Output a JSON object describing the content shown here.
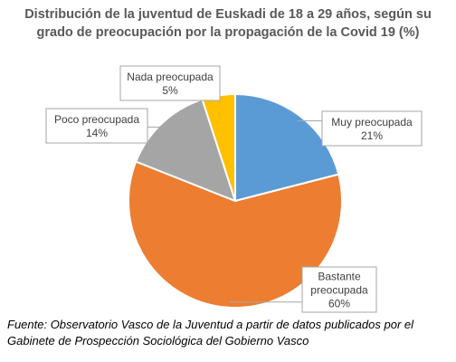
{
  "title_lines": [
    "Distribución de la juventud de Euskadi de 18 a 29 años, según su",
    "grado de preocupación por la propagación de la Covid 19 (%)"
  ],
  "source_lines": [
    "Fuente: Observatorio Vasco de la Juventud a partir de datos publicados por el",
    "Gabinete de Prospección Sociológica del Gobierno Vasco"
  ],
  "chart_data": {
    "type": "pie",
    "title": "Distribución de la juventud de Euskadi de 18 a 29 años, según su grado de preocupación por la propagación de la Covid 19 (%)",
    "unit": "%",
    "slices": [
      {
        "label_lines": [
          "Muy preocupada"
        ],
        "value": 21,
        "value_label": "21%",
        "color": "#5b9bd5"
      },
      {
        "label_lines": [
          "Bastante",
          "preocupada"
        ],
        "value": 60,
        "value_label": "60%",
        "color": "#ed7d31"
      },
      {
        "label_lines": [
          "Poco preocupada"
        ],
        "value": 14,
        "value_label": "14%",
        "color": "#a5a5a5"
      },
      {
        "label_lines": [
          "Nada preocupada"
        ],
        "value": 5,
        "value_label": "5%",
        "color": "#ffc000"
      }
    ],
    "start_angle_deg": 0,
    "direction": "clockwise",
    "legend": "none",
    "data_labels": "callout"
  }
}
